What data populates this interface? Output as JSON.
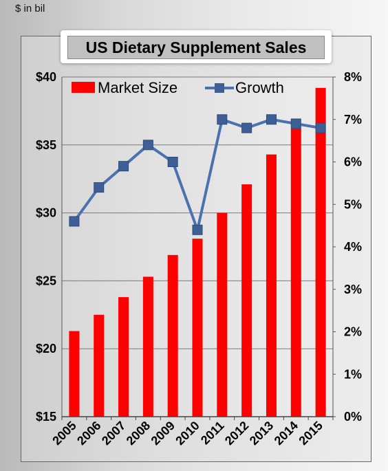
{
  "unit_note": "$ in bil",
  "chart_data": {
    "type": "bar",
    "title": "US Dietary Supplement Sales",
    "categories": [
      "2005",
      "2006",
      "2007",
      "2008",
      "2009",
      "2010",
      "2011",
      "2012",
      "2013",
      "2014",
      "2015"
    ],
    "series": [
      {
        "name": "Market Size",
        "type": "bar",
        "axis": "left",
        "color": "#ff0000",
        "values": [
          21.3,
          22.5,
          23.8,
          25.3,
          26.9,
          28.1,
          30.0,
          32.1,
          34.3,
          36.2,
          39.2
        ]
      },
      {
        "name": "Growth",
        "type": "line",
        "axis": "right",
        "color": "#4a72b0",
        "marker_color": "#3e5f96",
        "values": [
          4.6,
          5.4,
          5.9,
          6.4,
          6.0,
          4.4,
          7.0,
          6.8,
          7.0,
          6.9,
          6.8
        ]
      }
    ],
    "y_left": {
      "range": [
        15,
        40
      ],
      "ticks": [
        15,
        20,
        25,
        30,
        35,
        40
      ],
      "tick_labels": [
        "$15",
        "$20",
        "$25",
        "$30",
        "$35",
        "$40"
      ]
    },
    "y_right": {
      "range": [
        0,
        8
      ],
      "ticks": [
        0,
        1,
        2,
        3,
        4,
        5,
        6,
        7,
        8
      ],
      "tick_labels": [
        "0%",
        "1%",
        "2%",
        "3%",
        "4%",
        "5%",
        "6%",
        "7%",
        "8%"
      ]
    },
    "grid": true,
    "legend_position": "top-left"
  }
}
